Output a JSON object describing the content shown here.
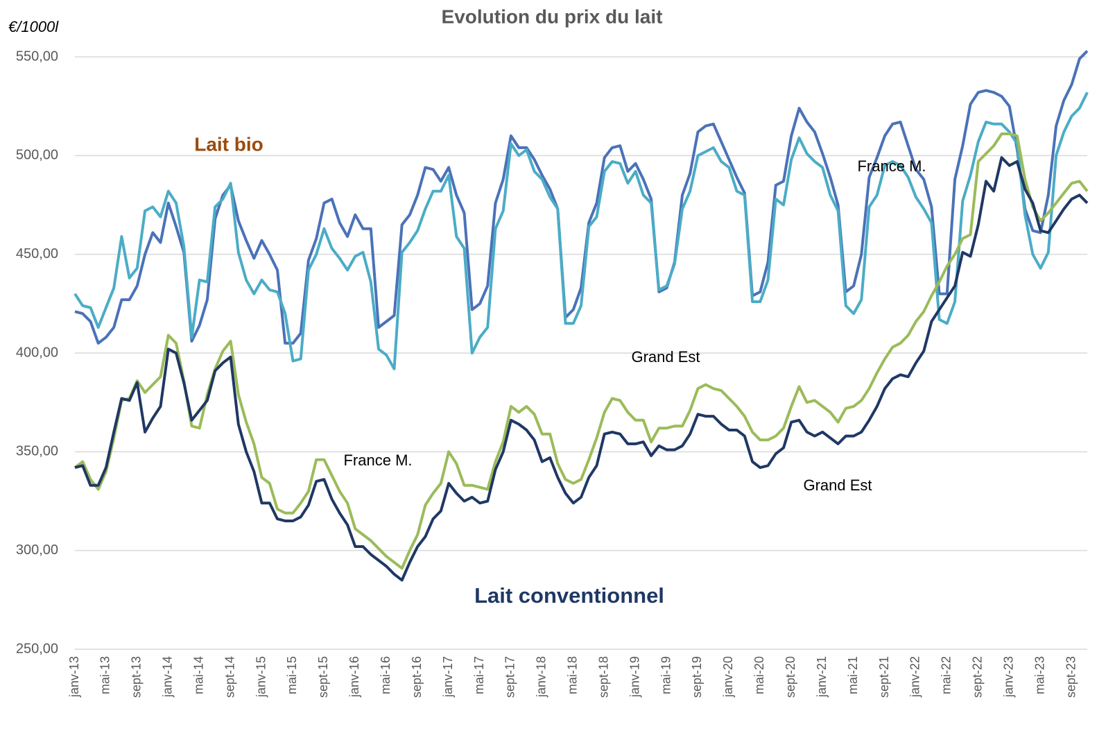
{
  "chart_data": {
    "type": "line",
    "title": "Evolution du prix du lait",
    "y_label": "€/1000l",
    "annotations": [
      "Lait bio",
      "Lait conventionnel",
      "France M.",
      "Grand Est",
      "France M.",
      "Grand Est"
    ],
    "categories": [
      "janv-13",
      null,
      null,
      null,
      "mai-13",
      null,
      null,
      null,
      "sept-13",
      null,
      null,
      null,
      "janv-14",
      null,
      null,
      null,
      "mai-14",
      null,
      null,
      null,
      "sept-14",
      null,
      null,
      null,
      "janv-15",
      null,
      null,
      null,
      "mai-15",
      null,
      null,
      null,
      "sept-15",
      null,
      null,
      null,
      "janv-16",
      null,
      null,
      null,
      "mai-16",
      null,
      null,
      null,
      "sept-16",
      null,
      null,
      null,
      "janv-17",
      null,
      null,
      null,
      "mai-17",
      null,
      null,
      null,
      "sept-17",
      null,
      null,
      null,
      "janv-18",
      null,
      null,
      null,
      "mai-18",
      null,
      null,
      null,
      "sept-18",
      null,
      null,
      null,
      "janv-19",
      null,
      null,
      null,
      "mai-19",
      null,
      null,
      null,
      "sept-19",
      null,
      null,
      null,
      "janv-20",
      null,
      null,
      null,
      "mai-20",
      null,
      null,
      null,
      "sept-20",
      null,
      null,
      null,
      "janv-21",
      null,
      null,
      null,
      "mai-21",
      null,
      null,
      null,
      "sept-21",
      null,
      null,
      null,
      "janv-22",
      null,
      null,
      null,
      "mai-22",
      null,
      null,
      null,
      "sept-22",
      null,
      null,
      null,
      "janv-23",
      null,
      null,
      null,
      "mai-23",
      null,
      null,
      null,
      "sept-23",
      null,
      null
    ],
    "series": [
      {
        "color": "#4a72b8",
        "values": [
          421,
          420,
          416,
          405,
          408,
          413,
          427,
          427,
          434,
          450,
          461,
          456,
          476,
          464,
          451,
          406,
          414,
          427,
          468,
          480,
          485,
          467,
          457,
          448,
          457,
          450,
          442,
          405,
          405,
          410,
          447,
          458,
          476,
          478,
          466,
          459,
          470,
          463,
          463,
          413,
          416,
          419,
          465,
          470,
          480,
          494,
          493,
          487,
          494,
          480,
          471,
          422,
          425,
          434,
          476,
          488,
          510,
          504,
          504,
          498,
          490,
          483,
          473,
          418,
          422,
          433,
          466,
          476,
          499,
          504,
          505,
          492,
          496,
          488,
          478,
          431,
          433,
          446,
          480,
          491,
          512,
          515,
          516,
          507,
          498,
          489,
          481,
          429,
          431,
          446,
          485,
          487,
          510,
          524,
          517,
          512,
          501,
          489,
          475,
          431,
          434,
          450,
          489,
          499,
          510,
          516,
          517,
          505,
          493,
          488,
          474,
          430,
          430,
          488,
          505,
          526,
          532,
          533,
          532,
          530,
          525,
          503,
          473,
          462,
          461,
          480,
          515,
          528,
          536,
          549,
          553
        ]
      },
      {
        "color": "#4bacc6",
        "values": [
          430,
          424,
          423,
          413,
          423,
          433,
          459,
          438,
          443,
          472,
          474,
          469,
          482,
          476,
          454,
          408,
          437,
          436,
          474,
          478,
          486,
          451,
          437,
          430,
          437,
          432,
          431,
          420,
          396,
          397,
          442,
          450,
          463,
          453,
          448,
          442,
          449,
          451,
          436,
          402,
          399,
          392,
          451,
          456,
          462,
          473,
          482,
          482,
          490,
          459,
          453,
          400,
          408,
          413,
          463,
          472,
          506,
          500,
          503,
          492,
          488,
          479,
          473,
          415,
          415,
          424,
          464,
          469,
          492,
          497,
          496,
          486,
          492,
          480,
          476,
          432,
          434,
          445,
          473,
          482,
          500,
          502,
          504,
          497,
          494,
          482,
          480,
          426,
          426,
          437,
          478,
          475,
          498,
          509,
          501,
          497,
          494,
          480,
          472,
          424,
          420,
          427,
          474,
          480,
          495,
          497,
          495,
          489,
          479,
          473,
          466,
          417,
          415,
          426,
          477,
          490,
          507,
          517,
          516,
          516,
          512,
          506,
          470,
          450,
          443,
          451,
          500,
          512,
          520,
          524,
          532
        ]
      },
      {
        "color": "#9bbb59",
        "values": [
          342,
          345,
          336,
          331,
          340,
          357,
          376,
          377,
          386,
          380,
          384,
          388,
          409,
          405,
          386,
          363,
          362,
          379,
          392,
          401,
          406,
          379,
          365,
          354,
          337,
          334,
          321,
          319,
          319,
          324,
          330,
          346,
          346,
          338,
          330,
          324,
          311,
          308,
          305,
          301,
          297,
          294,
          291,
          300,
          308,
          323,
          329,
          334,
          350,
          344,
          333,
          333,
          332,
          331,
          345,
          355,
          373,
          370,
          373,
          369,
          359,
          359,
          344,
          336,
          334,
          336,
          346,
          357,
          370,
          377,
          376,
          370,
          366,
          366,
          355,
          362,
          362,
          363,
          363,
          371,
          382,
          384,
          382,
          381,
          377,
          373,
          368,
          360,
          356,
          356,
          358,
          362,
          373,
          383,
          375,
          376,
          373,
          370,
          365,
          372,
          373,
          376,
          382,
          390,
          397,
          403,
          405,
          409,
          416,
          421,
          429,
          436,
          444,
          450,
          458,
          460,
          497,
          501,
          505,
          511,
          511,
          510,
          488,
          474,
          467,
          471,
          476,
          481,
          486,
          487,
          482
        ]
      },
      {
        "color": "#1f3864",
        "values": [
          342,
          343,
          333,
          333,
          342,
          360,
          377,
          376,
          385,
          360,
          367,
          373,
          402,
          400,
          385,
          366,
          371,
          376,
          391,
          395,
          398,
          364,
          350,
          340,
          324,
          324,
          316,
          315,
          315,
          317,
          323,
          335,
          336,
          326,
          319,
          313,
          302,
          302,
          298,
          295,
          292,
          288,
          285,
          294,
          302,
          307,
          316,
          320,
          334,
          329,
          325,
          327,
          324,
          325,
          341,
          350,
          366,
          364,
          361,
          356,
          345,
          347,
          337,
          329,
          324,
          327,
          337,
          343,
          359,
          360,
          359,
          354,
          354,
          355,
          348,
          353,
          351,
          351,
          353,
          359,
          369,
          368,
          368,
          364,
          361,
          361,
          358,
          345,
          342,
          343,
          349,
          352,
          365,
          366,
          360,
          358,
          360,
          357,
          354,
          358,
          358,
          360,
          366,
          373,
          382,
          387,
          389,
          388,
          395,
          401,
          416,
          422,
          428,
          434,
          451,
          449,
          465,
          487,
          482,
          499,
          495,
          497,
          483,
          476,
          462,
          461,
          467,
          473,
          478,
          480,
          476
        ]
      }
    ],
    "ylim": [
      250,
      550
    ],
    "yticks": [
      {
        "value": 250,
        "label": "250,00"
      },
      {
        "value": 300,
        "label": "300,00"
      },
      {
        "value": 350,
        "label": "350,00"
      },
      {
        "value": 400,
        "label": "400,00"
      },
      {
        "value": 450,
        "label": "450,00"
      },
      {
        "value": 500,
        "label": "500,00"
      },
      {
        "value": 550,
        "label": "550,00"
      }
    ],
    "grid": true
  }
}
